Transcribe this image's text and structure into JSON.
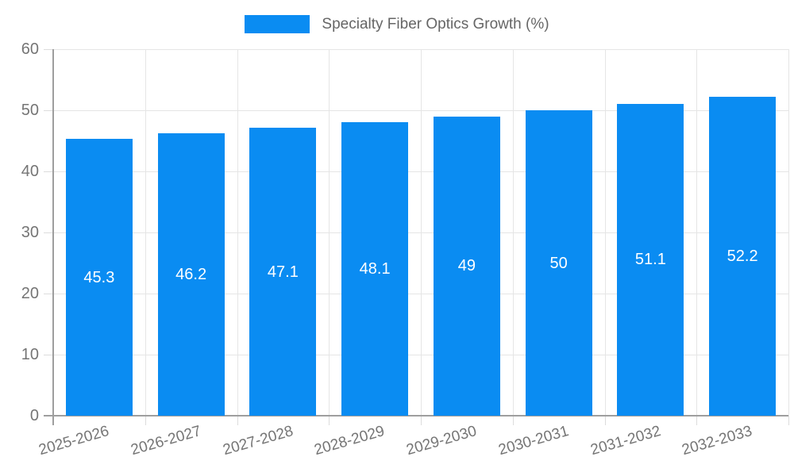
{
  "page": {
    "background": "#ffffff"
  },
  "chart_data": {
    "type": "bar",
    "title": "",
    "legend_label": "Specialty Fiber Optics Growth (%)",
    "legend_position": "top",
    "categories": [
      "2025-2026",
      "2026-2027",
      "2027-2028",
      "2028-2029",
      "2029-2030",
      "2030-2031",
      "2031-2032",
      "2032-2033"
    ],
    "series": [
      {
        "name": "Specialty Fiber Optics Growth (%)",
        "values": [
          45.3,
          46.2,
          47.1,
          48.1,
          49,
          50,
          51.1,
          52.2
        ],
        "value_labels": [
          "45.3",
          "46.2",
          "47.1",
          "48.1",
          "49",
          "50",
          "51.1",
          "52.2"
        ]
      }
    ],
    "xlabel": "",
    "ylabel": "",
    "ylim": [
      0,
      60
    ],
    "yticks": [
      0,
      10,
      20,
      30,
      40,
      50,
      60
    ],
    "ytick_labels": [
      "0",
      "10",
      "20",
      "30",
      "40",
      "50",
      "60"
    ],
    "grid": true,
    "colors": {
      "bar": "#0a8cf2",
      "grid": "#e5e5e5",
      "axis": "#9e9e9e",
      "tick": "#dcdcdc",
      "tick_label": "#757575",
      "legend_text": "#666666",
      "data_label": "#ffffff"
    }
  }
}
